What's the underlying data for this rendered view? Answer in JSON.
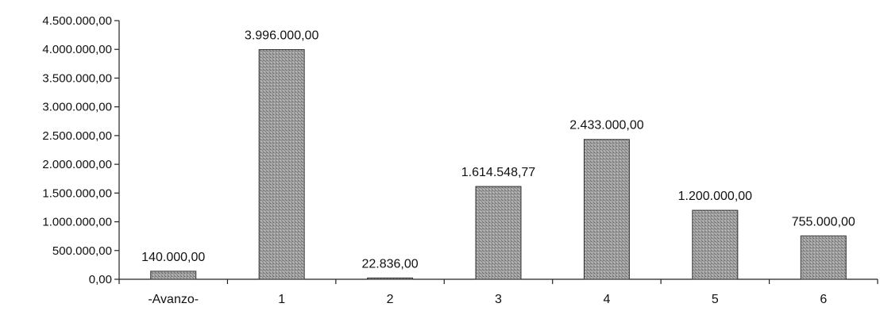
{
  "chart_data": {
    "type": "bar",
    "categories": [
      "-Avanzo-",
      "1",
      "2",
      "3",
      "4",
      "5",
      "6"
    ],
    "values": [
      140000.0,
      3996000.0,
      22836.0,
      1614548.77,
      2433000.0,
      1200000.0,
      755000.0
    ],
    "data_labels": [
      "140.000,00",
      "3.996.000,00",
      "22.836,00",
      "1.614.548,77",
      "2.433.000,00",
      "1.200.000,00",
      "755.000,00"
    ],
    "y_ticks": [
      0,
      500000,
      1000000,
      1500000,
      2000000,
      2500000,
      3000000,
      3500000,
      4000000,
      4500000
    ],
    "y_tick_labels": [
      "0,00",
      "500.000,00",
      "1.000.000,00",
      "1.500.000,00",
      "2.000.000,00",
      "2.500.000,00",
      "3.000.000,00",
      "3.500.000,00",
      "4.000.000,00",
      "4.500.000,00"
    ],
    "ylim": [
      0,
      4500000
    ],
    "title": "",
    "xlabel": "",
    "ylabel": "",
    "grid": false,
    "legend": "none",
    "bar_color": "#9a9a9a"
  }
}
